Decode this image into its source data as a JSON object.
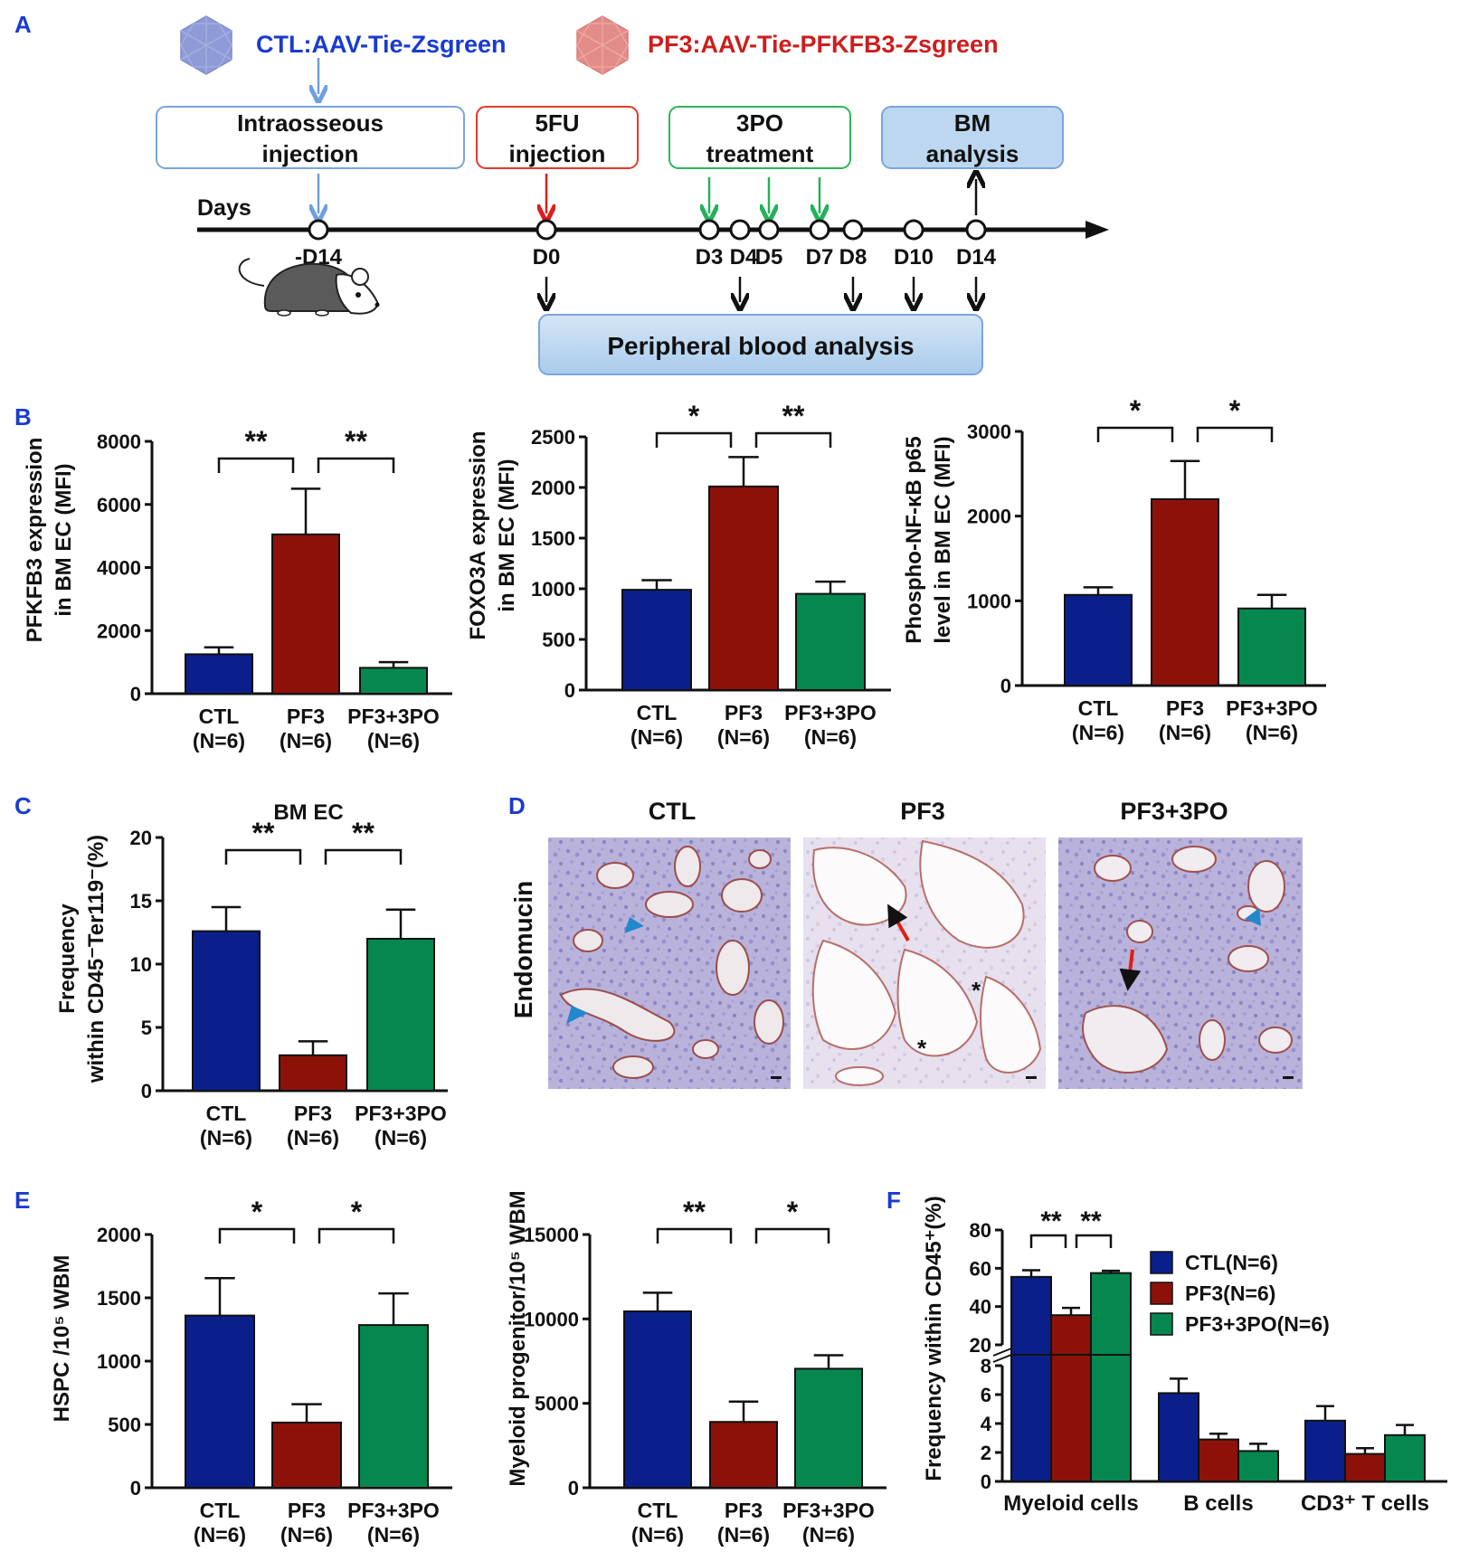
{
  "colors": {
    "ctl": "#0b1f8a",
    "pf3": "#8c1209",
    "tpo": "#06874f",
    "hex_ctl": "#8e9bd6",
    "hex_pf3": "#e28c88",
    "blue_text": "#1a3bd0",
    "red_text": "#cc1e1e",
    "box_blue": "#7aa6dc",
    "box_red": "#e23a2a",
    "box_green": "#2fb55a",
    "box_fill": "#bcd7ef",
    "arrow_blue": "#6f9fe0",
    "arrow_red": "#e01b1b",
    "arrow_green": "#22b25a",
    "marker_blue": "#2288cc",
    "marker_red": "#e02010"
  },
  "panel_a": {
    "letter": "A",
    "ctl_label": "CTL:AAV-Tie-Zsgreen",
    "pf3_label": "PF3:AAV-Tie-PFKFB3-Zsgreen",
    "boxes": [
      {
        "line1": "Intraosseous",
        "line2": "injection"
      },
      {
        "line1": "5FU",
        "line2": "injection"
      },
      {
        "line1": "3PO",
        "line2": "treatment"
      },
      {
        "line1": "BM",
        "line2": "analysis"
      }
    ],
    "days_label": "Days",
    "days": [
      "-D14",
      "D0",
      "D3",
      "D4",
      "D5",
      "D7",
      "D8",
      "D10",
      "D14"
    ],
    "pb_label": "Peripheral blood analysis"
  },
  "panel_b": {
    "letter": "B",
    "charts": [
      {
        "ylabel_1": "PFKFB3 expression",
        "ylabel_2": "in BM EC  (MFI)"
      },
      {
        "ylabel_1": "FOXO3A expression",
        "ylabel_2": "in BM EC  (MFI)"
      },
      {
        "ylabel_1": "Phospho-NF-κB p65",
        "ylabel_2": "level in BM EC  (MFI)"
      }
    ]
  },
  "panel_c": {
    "letter": "C",
    "title": "BM EC",
    "ylabel_1": "Frequency",
    "ylabel_2": "within CD45⁻Ter119⁻(%)"
  },
  "panel_d": {
    "letter": "D",
    "side_label": "Endomucin",
    "titles": [
      "CTL",
      "PF3",
      "PF3+3PO"
    ],
    "asterisk": "*"
  },
  "panel_e": {
    "letter": "E",
    "charts": [
      {
        "ylabel": "HSPC  /10⁵ WBM"
      },
      {
        "ylabel": "Myeloid progenitor/10⁵ WBM"
      }
    ]
  },
  "panel_f": {
    "letter": "F",
    "ylabel": "Frequency within CD45⁺(%)",
    "legend": [
      "CTL(N=6)",
      "PF3(N=6)",
      "PF3+3PO(N=6)"
    ]
  },
  "group_labels": [
    "CTL",
    "PF3",
    "PF3+3PO"
  ],
  "n_label": "(N=6)",
  "chart_data": [
    {
      "id": "b1",
      "type": "bar",
      "categories": [
        "CTL",
        "PF3",
        "PF3+3PO"
      ],
      "values": [
        1250,
        5050,
        820
      ],
      "errors": [
        220,
        1450,
        180
      ],
      "ylim": [
        0,
        8000
      ],
      "ticks": [
        0,
        2000,
        4000,
        6000,
        8000
      ],
      "sig": [
        "**",
        "**"
      ]
    },
    {
      "id": "b2",
      "type": "bar",
      "categories": [
        "CTL",
        "PF3",
        "PF3+3PO"
      ],
      "values": [
        990,
        2010,
        950
      ],
      "errors": [
        95,
        290,
        120
      ],
      "ylim": [
        0,
        2500
      ],
      "ticks": [
        0,
        500,
        1000,
        1500,
        2000,
        2500
      ],
      "sig": [
        "*",
        "**"
      ]
    },
    {
      "id": "b3",
      "type": "bar",
      "categories": [
        "CTL",
        "PF3",
        "PF3+3PO"
      ],
      "values": [
        1070,
        2200,
        910
      ],
      "errors": [
        90,
        450,
        160
      ],
      "ylim": [
        0,
        3000
      ],
      "ticks": [
        0,
        1000,
        2000,
        3000
      ],
      "sig": [
        "*",
        "*"
      ]
    },
    {
      "id": "c",
      "type": "bar",
      "categories": [
        "CTL",
        "PF3",
        "PF3+3PO"
      ],
      "values": [
        12.6,
        2.8,
        12.0
      ],
      "errors": [
        1.9,
        1.1,
        2.3
      ],
      "ylim": [
        0,
        20
      ],
      "ticks": [
        0,
        5,
        10,
        15,
        20
      ],
      "sig": [
        "**",
        "**"
      ]
    },
    {
      "id": "e1",
      "type": "bar",
      "categories": [
        "CTL",
        "PF3",
        "PF3+3PO"
      ],
      "values": [
        1360,
        515,
        1285
      ],
      "errors": [
        295,
        145,
        250
      ],
      "ylim": [
        0,
        2000
      ],
      "ticks": [
        0,
        500,
        1000,
        1500,
        2000
      ],
      "sig": [
        "*",
        "*"
      ]
    },
    {
      "id": "e2",
      "type": "bar",
      "categories": [
        "CTL",
        "PF3",
        "PF3+3PO"
      ],
      "values": [
        10450,
        3900,
        7050
      ],
      "errors": [
        1100,
        1200,
        800
      ],
      "ylim": [
        0,
        15000
      ],
      "ticks": [
        0,
        5000,
        10000,
        15000
      ],
      "sig": [
        "**",
        "*"
      ]
    },
    {
      "id": "f",
      "type": "bar",
      "categories": [
        "Myeloid cells",
        "B cells",
        "CD3⁺ T cells"
      ],
      "series": [
        {
          "name": "CTL(N=6)",
          "values": [
            55.5,
            6.1,
            4.2
          ],
          "errors": [
            3.5,
            1.0,
            1.0
          ]
        },
        {
          "name": "PF3(N=6)",
          "values": [
            35.5,
            2.9,
            1.9
          ],
          "errors": [
            3.8,
            0.4,
            0.4
          ]
        },
        {
          "name": "PF3+3PO(N=6)",
          "values": [
            57.5,
            2.1,
            3.2
          ],
          "errors": [
            1.2,
            0.5,
            0.7
          ]
        }
      ],
      "upper_ticks": [
        20,
        40,
        60,
        80
      ],
      "lower_ticks": [
        0,
        2,
        4,
        6,
        8
      ],
      "sig": [
        "**",
        "**"
      ]
    }
  ]
}
